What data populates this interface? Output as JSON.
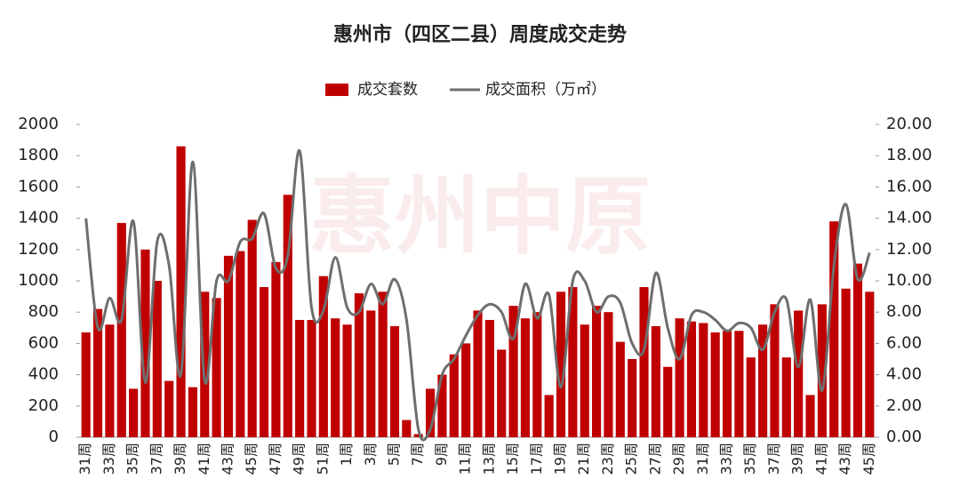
{
  "chart_data": {
    "type": "bar",
    "title": "惠州市（四区二县）周度成交走势",
    "watermark": "惠州中原",
    "categories": [
      "31周",
      null,
      "33周",
      null,
      "35周",
      null,
      "37周",
      null,
      "39周",
      null,
      "41周",
      null,
      "43周",
      null,
      "45周",
      null,
      "47周",
      null,
      "49周",
      null,
      "51周",
      null,
      "1周",
      null,
      "3周",
      null,
      "5周",
      null,
      "7周",
      null,
      "9周",
      null,
      "11周",
      null,
      "13周",
      null,
      "15周",
      null,
      "17周",
      null,
      "19周",
      null,
      "21周",
      null,
      "23周",
      null,
      "25周",
      null,
      "27周",
      null,
      "29周",
      null,
      "31周",
      null,
      "33周",
      null,
      "35周",
      null,
      "37周",
      null,
      "39周",
      null,
      "41周",
      null,
      "43周",
      null,
      "45周"
    ],
    "series": [
      {
        "name": "成交套数",
        "type": "bar",
        "color": "#c00000",
        "values": [
          670,
          820,
          720,
          1370,
          310,
          1200,
          1000,
          360,
          1860,
          320,
          930,
          890,
          1160,
          1190,
          1390,
          960,
          1120,
          1550,
          750,
          750,
          1030,
          760,
          720,
          920,
          810,
          930,
          710,
          110,
          20,
          310,
          400,
          530,
          600,
          810,
          750,
          560,
          840,
          760,
          800,
          270,
          930,
          960,
          720,
          840,
          800,
          610,
          500,
          960,
          710,
          450,
          760,
          740,
          730,
          670,
          680,
          680,
          510,
          720,
          850,
          510,
          810,
          270,
          850,
          1380,
          950,
          1110,
          930
        ]
      },
      {
        "name": "成交面积（万㎡）",
        "type": "line",
        "axis": "y2",
        "color": "#6e6e6e",
        "values": [
          14.0,
          7.0,
          8.9,
          7.5,
          13.8,
          3.5,
          12.5,
          11.0,
          4.0,
          17.6,
          3.6,
          10.0,
          10.0,
          12.5,
          12.7,
          14.3,
          10.8,
          11.6,
          18.3,
          8.3,
          8.1,
          11.5,
          8.3,
          8.0,
          9.8,
          8.5,
          10.1,
          7.5,
          0.5,
          0.5,
          4.0,
          5.0,
          6.5,
          7.8,
          8.5,
          8.0,
          6.3,
          9.8,
          7.6,
          9.1,
          3.2,
          10.0,
          10.0,
          8.0,
          9.0,
          8.6,
          6.0,
          5.6,
          10.5,
          7.0,
          5.0,
          7.8,
          8.0,
          7.5,
          6.8,
          7.3,
          7.0,
          5.6,
          8.0,
          8.8,
          4.5,
          8.8,
          3.0,
          11.0,
          14.9,
          10.1,
          11.8
        ]
      }
    ],
    "ylim": [
      0,
      2000
    ],
    "yticks": [
      0,
      200,
      400,
      600,
      800,
      1000,
      1200,
      1400,
      1600,
      1800,
      2000
    ],
    "y2lim": [
      0,
      20
    ],
    "y2ticks": [
      {
        "value": 0,
        "label": "0.00"
      },
      {
        "value": 2,
        "label": "2.00"
      },
      {
        "value": 4,
        "label": "4.00"
      },
      {
        "value": 6,
        "label": "6.00"
      },
      {
        "value": 8,
        "label": "8.00"
      },
      {
        "value": 10,
        "label": "10.00"
      },
      {
        "value": 12,
        "label": "12.00"
      },
      {
        "value": 14,
        "label": "14.00"
      },
      {
        "value": 16,
        "label": "16.00"
      },
      {
        "value": 18,
        "label": "18.00"
      },
      {
        "value": 20,
        "label": "20.00"
      }
    ],
    "legend": "top",
    "grid": false
  }
}
